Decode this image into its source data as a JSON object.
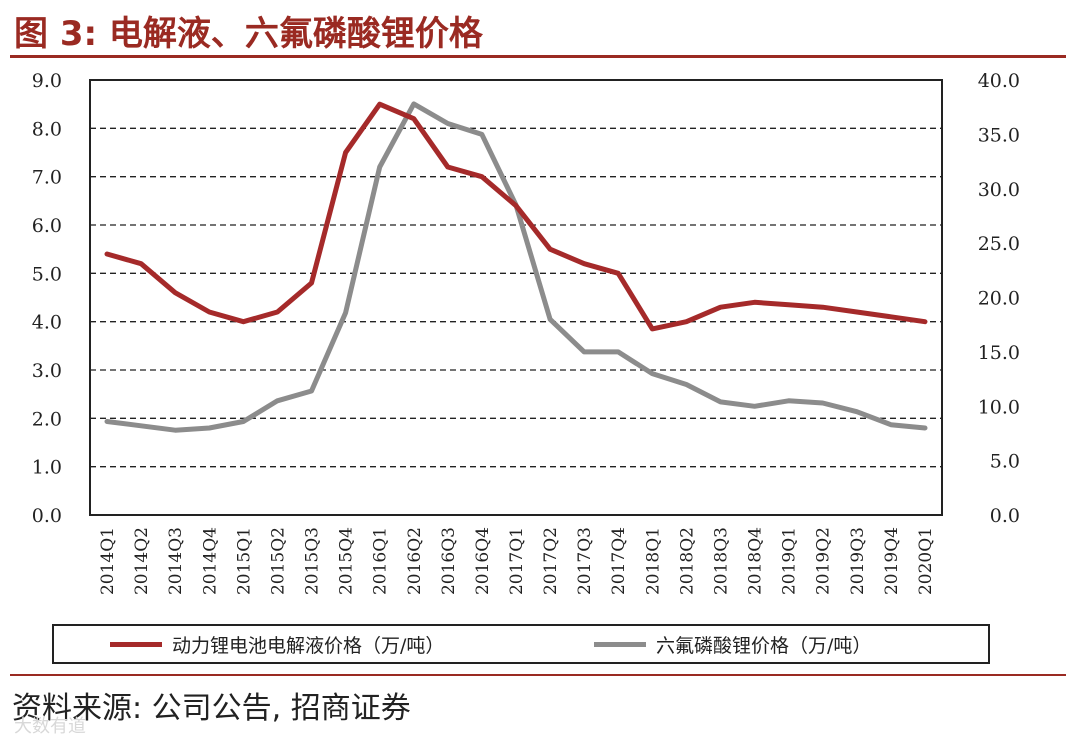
{
  "figure": {
    "title": "图 3:  电解液、六氟磷酸锂价格",
    "source": "资料来源:  公司公告,  招商证券",
    "watermark": "大数有道"
  },
  "chart_data": {
    "type": "line",
    "categories": [
      "2014Q1",
      "2014Q2",
      "2014Q3",
      "2014Q4",
      "2015Q1",
      "2015Q2",
      "2015Q3",
      "2015Q4",
      "2016Q1",
      "2016Q2",
      "2016Q3",
      "2016Q4",
      "2017Q1",
      "2017Q2",
      "2017Q3",
      "2017Q4",
      "2018Q1",
      "2018Q2",
      "2018Q3",
      "2018Q4",
      "2019Q1",
      "2019Q2",
      "2019Q3",
      "2019Q4",
      "2020Q1"
    ],
    "y_left": {
      "range": [
        0,
        9
      ],
      "ticks": [
        "0.0",
        "1.0",
        "2.0",
        "3.0",
        "4.0",
        "5.0",
        "6.0",
        "7.0",
        "8.0",
        "9.0"
      ]
    },
    "y_right": {
      "range": [
        0,
        40
      ],
      "ticks": [
        "0.0",
        "5.0",
        "10.0",
        "15.0",
        "20.0",
        "25.0",
        "30.0",
        "35.0",
        "40.0"
      ]
    },
    "grid": "horizontal-dashed",
    "legend_position": "bottom",
    "series": [
      {
        "name": "动力锂电池电解液价格（万/吨）",
        "axis": "left",
        "color": "#a52a2a",
        "values": [
          5.4,
          5.2,
          4.6,
          4.2,
          4.0,
          4.2,
          4.8,
          7.5,
          8.5,
          8.2,
          7.2,
          7.0,
          6.4,
          5.5,
          5.2,
          5.0,
          3.85,
          4.0,
          4.3,
          4.4,
          4.35,
          4.3,
          4.2,
          4.1,
          4.0
        ]
      },
      {
        "name": "六氟磷酸锂价格（万/吨）",
        "axis": "right",
        "color": "#8c8c8c",
        "values": [
          8.6,
          8.2,
          7.8,
          8.0,
          8.6,
          10.5,
          11.4,
          18.6,
          32.0,
          37.8,
          36.0,
          35.0,
          28.5,
          18.0,
          15.0,
          15.0,
          13.0,
          12.0,
          10.4,
          10.0,
          10.5,
          10.3,
          9.5,
          8.3,
          8.0
        ]
      }
    ]
  }
}
